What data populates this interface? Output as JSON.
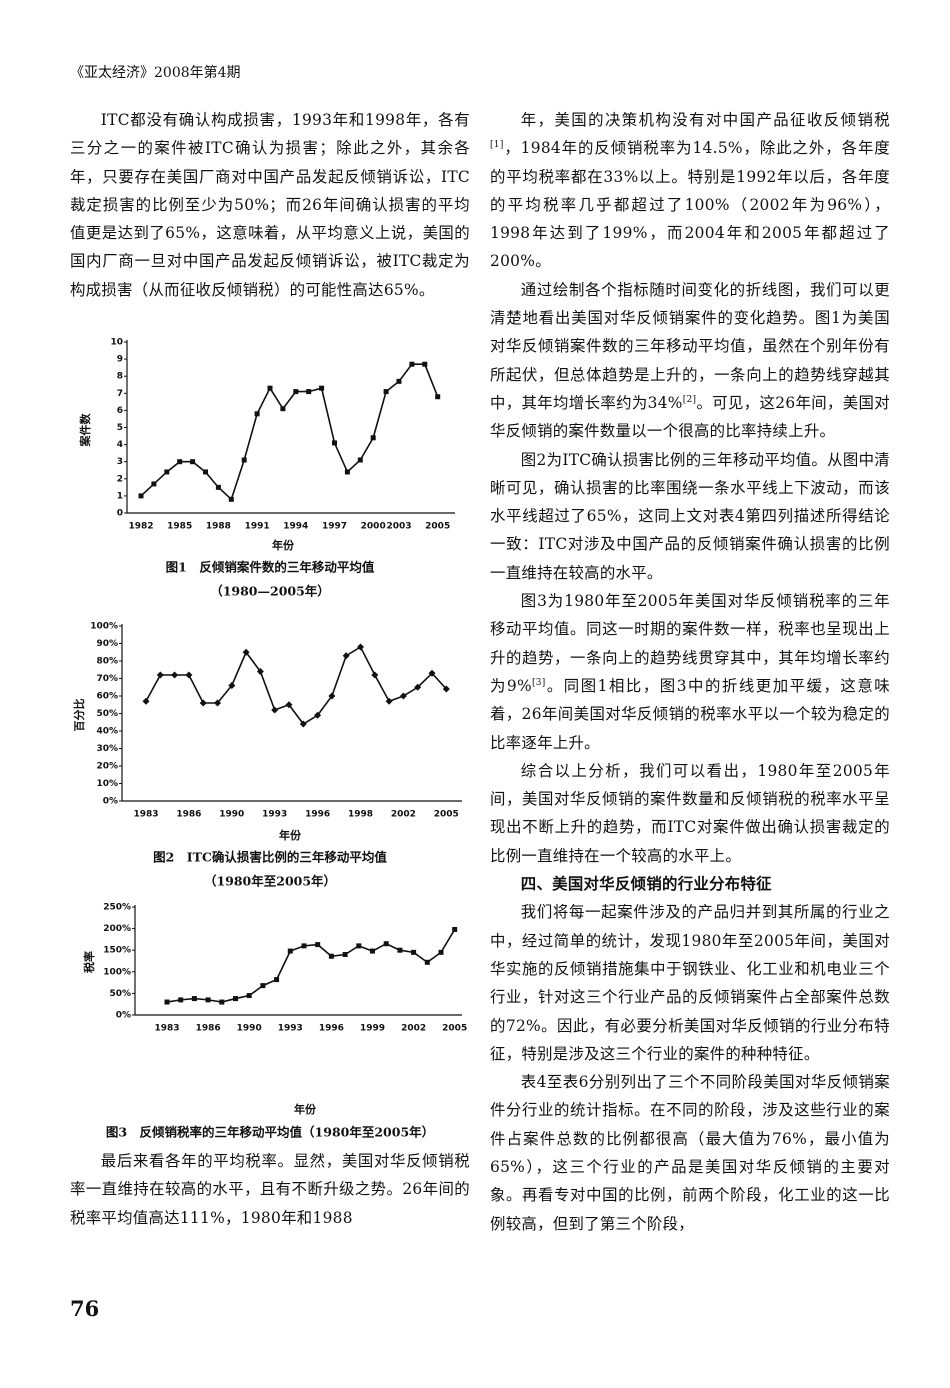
{
  "header": "《亚太经济》2008年第4期",
  "left_column": {
    "paragraphs": [
      [
        "ITC都没有确认构成损害，1993年和1998年，各有三分之一的案件被ITC确认为损害；除此之外，其余各年，只要存在美国厂商对中国产品发起反倾销诉讼，ITC裁定损害的比例至少为50%；而26年间确认损害的平均值更是达到了65%，这意味着，从平均意义上说，美国的国内厂商一旦对中国产品发起反倾销诉讼，被ITC裁定为构成损害（从而征收反倾销税）的可能性高达65%。"
      ]
    ],
    "closing_paragraph": [
      "最后来看各年的平均税率。显然，美国对华反倾销税率一直维持在较高的水平，且有不断升级之势。26年间的税率平均值高达111%，1980年和1988"
    ]
  },
  "chart_data": [
    {
      "type": "line",
      "caption": [
        "图1　反倾销案件数的三年移动平均值",
        "（1980—2005年）"
      ],
      "x_label": "年份",
      "y_label": "案件数",
      "color": "#111111",
      "marker": "square",
      "categories": [
        "1982",
        null,
        null,
        "1985",
        null,
        null,
        "1988",
        null,
        null,
        "1991",
        null,
        null,
        "1994",
        null,
        null,
        "1997",
        null,
        null,
        "2000",
        null,
        "2003",
        null,
        null,
        "2005"
      ],
      "values": [
        1,
        1.7,
        2.4,
        3,
        3,
        2.4,
        1.5,
        0.8,
        3.1,
        5.8,
        7.3,
        6.1,
        7.1,
        7.1,
        7.3,
        4.1,
        2.4,
        3.1,
        4.4,
        7.1,
        7.7,
        8.7,
        8.7,
        6.8
      ],
      "ylim": [
        0,
        10
      ],
      "yticks": [
        0,
        1,
        2,
        3,
        4,
        5,
        6,
        7,
        8,
        9,
        10
      ]
    },
    {
      "type": "line",
      "caption": [
        "图2　ITC确认损害比例的三年移动平均值",
        "（1980年至2005年）"
      ],
      "x_label": "年份",
      "y_label": "百分比",
      "color": "#111111",
      "marker": "diamond",
      "categories": [
        "1983",
        null,
        null,
        "1986",
        null,
        null,
        "1990",
        null,
        null,
        "1993",
        null,
        null,
        "1996",
        null,
        null,
        "1998",
        null,
        null,
        "2002",
        null,
        null,
        "2005"
      ],
      "values": [
        57,
        72,
        72,
        72,
        56,
        56,
        66,
        85,
        74,
        52,
        55,
        44,
        49,
        60,
        83,
        88,
        72,
        57,
        60,
        65,
        73,
        64
      ],
      "ylim": [
        0,
        100
      ],
      "yticks": [
        {
          "value": 0,
          "label": "0%"
        },
        {
          "value": 10,
          "label": "10%"
        },
        {
          "value": 20,
          "label": "20%"
        },
        {
          "value": 30,
          "label": "30%"
        },
        {
          "value": 40,
          "label": "40%"
        },
        {
          "value": 50,
          "label": "50%"
        },
        {
          "value": 60,
          "label": "60%"
        },
        {
          "value": 70,
          "label": "70%"
        },
        {
          "value": 80,
          "label": "80%"
        },
        {
          "value": 90,
          "label": "90%"
        },
        {
          "value": 100,
          "label": "100%"
        }
      ]
    },
    {
      "type": "line",
      "caption": [
        "图3　反倾销税率的三年移动平均值（1980年至2005年）"
      ],
      "x_label": "年份",
      "y_label": "税率",
      "color": "#111111",
      "marker": "square",
      "categories": [
        "1983",
        null,
        null,
        "1986",
        null,
        null,
        "1990",
        null,
        null,
        "1993",
        null,
        null,
        "1996",
        null,
        null,
        "1999",
        null,
        null,
        "2002",
        null,
        null,
        "2005"
      ],
      "values": [
        30,
        35,
        38,
        35,
        30,
        38,
        45,
        68,
        82,
        148,
        160,
        163,
        136,
        140,
        160,
        148,
        165,
        150,
        145,
        122,
        145,
        198
      ],
      "ylim": [
        0,
        250
      ],
      "yticks": [
        {
          "value": 0,
          "label": "0%"
        },
        {
          "value": 50,
          "label": "50%"
        },
        {
          "value": 100,
          "label": "100%"
        },
        {
          "value": 150,
          "label": "150%"
        },
        {
          "value": 200,
          "label": "200%"
        },
        {
          "value": 250,
          "label": "250%"
        }
      ]
    }
  ],
  "right_column": {
    "paragraphs": [
      [
        "年，美国的决策机构没有对中国产品征收反倾销税",
        "[1]",
        "，1984年的反倾销税率为14.5%，除此之外，各年度的平均税率都在33%以上。特别是1992年以后，各年度的平均税率几乎都超过了100%（2002年为96%），1998年达到了199%，而2004年和2005年都超过了200%。"
      ],
      [
        "通过绘制各个指标随时间变化的折线图，我们可以更清楚地看出美国对华反倾销案件的变化趋势。图1为美国对华反倾销案件数的三年移动平均值，虽然在个别年份有所起伏，但总体趋势是上升的，一条向上的趋势线穿越其中，其年均增长率约为34%",
        "[2]",
        "。可见，这26年间，美国对华反倾销的案件数量以一个很高的比率持续上升。"
      ],
      [
        "图2为ITC确认损害比例的三年移动平均值。从图中清晰可见，确认损害的比率围绕一条水平线上下波动，而该水平线超过了65%，这同上文对表4第四列描述所得结论一致：ITC对涉及中国产品的反倾销案件确认损害的比例一直维持在较高的水平。"
      ],
      [
        "图3为1980年至2005年美国对华反倾销税率的三年移动平均值。同这一时期的案件数一样，税率也呈现出上升的趋势，一条向上的趋势线贯穿其中，其年均增长率约为9%",
        "[3]",
        "。同图1相比，图3中的折线更加平缓，这意味着，26年间美国对华反倾销的税率水平以一个较为稳定的比率逐年上升。"
      ],
      [
        "综合以上分析，我们可以看出，1980年至2005年间，美国对华反倾销的案件数量和反倾销税的税率水平呈现出不断上升的趋势，而ITC对案件做出确认损害裁定的比例一直维持在一个较高的水平上。"
      ]
    ],
    "section_heading": "四、美国对华反倾销的行业分布特征",
    "section_paragraphs": [
      [
        "我们将每一起案件涉及的产品归并到其所属的行业之中，经过简单的统计，发现1980年至2005年间，美国对华实施的反倾销措施集中于钢铁业、化工业和机电业三个行业，针对这三个行业产品的反倾销案件占全部案件总数的72%。因此，有必要分析美国对华反倾销的行业分布特征，特别是涉及这三个行业的案件的种种特征。"
      ],
      [
        "表4至表6分别列出了三个不同阶段美国对华反倾销案件分行业的统计指标。在不同的阶段，涉及这些行业的案件占案件总数的比例都很高（最大值为76%，最小值为65%），这三个行业的产品是美国对华反倾销的主要对象。再看专对中国的比例，前两个阶段，化工业的这一比例较高，但到了第三个阶段，"
      ]
    ]
  },
  "page_number": "76"
}
